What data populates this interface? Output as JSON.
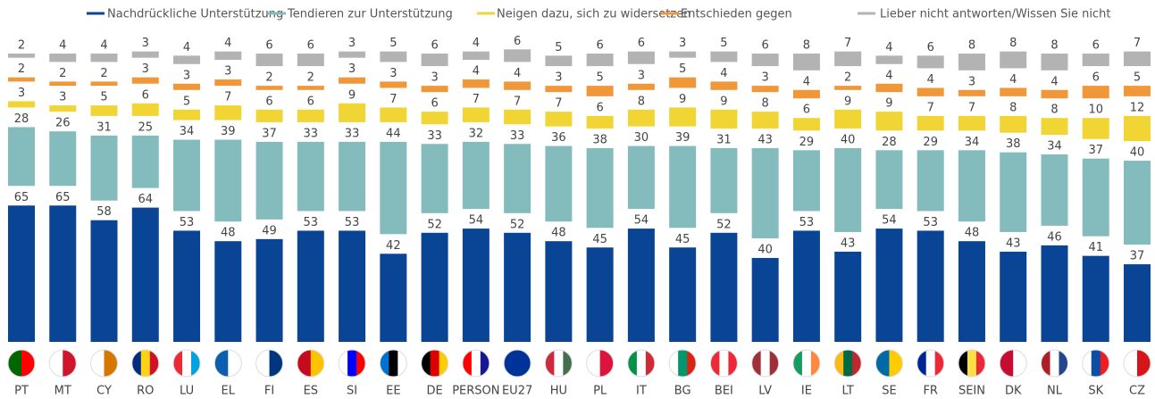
{
  "chart_data": {
    "type": "stacked-bar",
    "categories": [
      "PT",
      "MT",
      "CY",
      "RO",
      "LU",
      "EL",
      "FI",
      "ES",
      "SI",
      "EE",
      "DE",
      "PERSON",
      "EU27",
      "HU",
      "PL",
      "IT",
      "BG",
      "BEI",
      "LV",
      "IE",
      "LT",
      "SE",
      "FR",
      "SEIN",
      "DK",
      "NL",
      "SK",
      "CZ"
    ],
    "series": [
      {
        "name": "Nachdrückliche Unterstützung",
        "color": "#0a4595",
        "values": [
          65,
          65,
          58,
          64,
          53,
          48,
          49,
          53,
          53,
          42,
          52,
          54,
          52,
          48,
          45,
          54,
          45,
          52,
          40,
          53,
          43,
          54,
          53,
          48,
          43,
          46,
          41,
          37
        ]
      },
      {
        "name": "Tendieren zur Unterstützung",
        "color": "#84bcbd",
        "values": [
          28,
          26,
          31,
          25,
          34,
          39,
          37,
          33,
          33,
          44,
          33,
          32,
          33,
          36,
          38,
          30,
          39,
          31,
          43,
          29,
          40,
          28,
          29,
          34,
          38,
          34,
          37,
          40
        ]
      },
      {
        "name": "Neigen dazu, sich zu widersetzen",
        "color": "#f0d535",
        "values": [
          3,
          3,
          5,
          6,
          5,
          7,
          6,
          6,
          9,
          7,
          6,
          7,
          7,
          7,
          6,
          8,
          9,
          9,
          8,
          6,
          9,
          9,
          7,
          7,
          8,
          8,
          10,
          12
        ]
      },
      {
        "name": "Entschieden gegen",
        "color": "#f0973a",
        "values": [
          2,
          2,
          2,
          3,
          3,
          3,
          2,
          2,
          3,
          3,
          3,
          4,
          4,
          3,
          5,
          3,
          5,
          4,
          3,
          4,
          2,
          4,
          4,
          3,
          4,
          4,
          6,
          5
        ]
      },
      {
        "name": "Lieber nicht antworten/Wissen Sie nicht",
        "color": "#b3b3b3",
        "values": [
          2,
          4,
          4,
          3,
          4,
          4,
          6,
          6,
          3,
          5,
          6,
          4,
          6,
          5,
          6,
          6,
          3,
          5,
          6,
          8,
          7,
          4,
          6,
          8,
          8,
          8,
          6,
          7
        ]
      }
    ]
  }
}
